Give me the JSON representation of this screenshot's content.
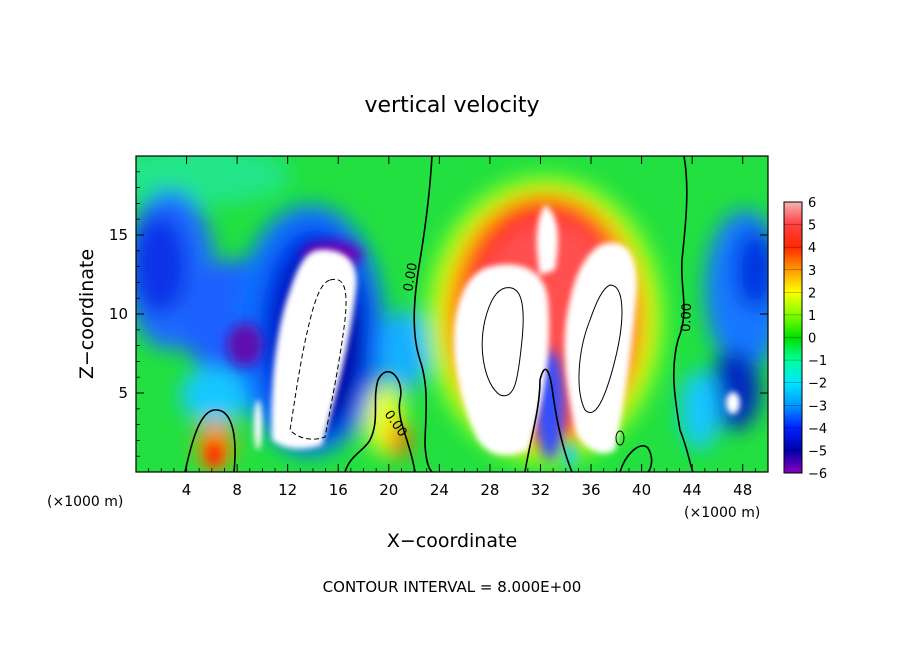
{
  "chart_data": {
    "type": "heatmap",
    "title": "vertical velocity",
    "xlabel": "X−coordinate",
    "ylabel": "Z−coordinate",
    "x_unit_left": "(×1000 m)",
    "x_unit_right": "(×1000 m)",
    "x_ticks": [
      4,
      8,
      12,
      16,
      20,
      24,
      28,
      32,
      36,
      40,
      44,
      48
    ],
    "x_tick_labels": [
      "4",
      "8",
      "12",
      "16",
      "20",
      "24",
      "28",
      "32",
      "36",
      "40",
      "44",
      "48"
    ],
    "y_ticks": [
      5,
      10,
      15
    ],
    "y_tick_labels": [
      "5",
      "10",
      "15"
    ],
    "xlim": [
      0,
      50
    ],
    "ylim": [
      0,
      20
    ],
    "colorbar": {
      "levels": [
        6,
        5,
        4,
        3,
        2,
        1,
        0,
        -1,
        -2,
        -3,
        -4,
        -5,
        -6
      ],
      "labels": [
        "6",
        "5",
        "4",
        "3",
        "2",
        "1",
        "0",
        "−1",
        "−2",
        "−3",
        "−4",
        "−5",
        "−6"
      ],
      "range": [
        -6,
        6
      ]
    },
    "contour_labels": [
      {
        "text": "0.00",
        "x": 21.5,
        "y": 11.5
      },
      {
        "text": "0.00",
        "x": 20.5,
        "y": 3.0
      },
      {
        "text": "0.00",
        "x": 43.3,
        "y": 10.0
      }
    ],
    "features": [
      {
        "kind": "updraft",
        "value": 6,
        "x": 32,
        "y": 8
      },
      {
        "kind": "downdraft",
        "value": -6,
        "x": 14.2,
        "y": 7.5
      },
      {
        "kind": "downdraft",
        "value": -5,
        "x": 2,
        "y": 12
      }
    ],
    "note": "CONTOUR INTERVAL = 8.000E+00"
  }
}
